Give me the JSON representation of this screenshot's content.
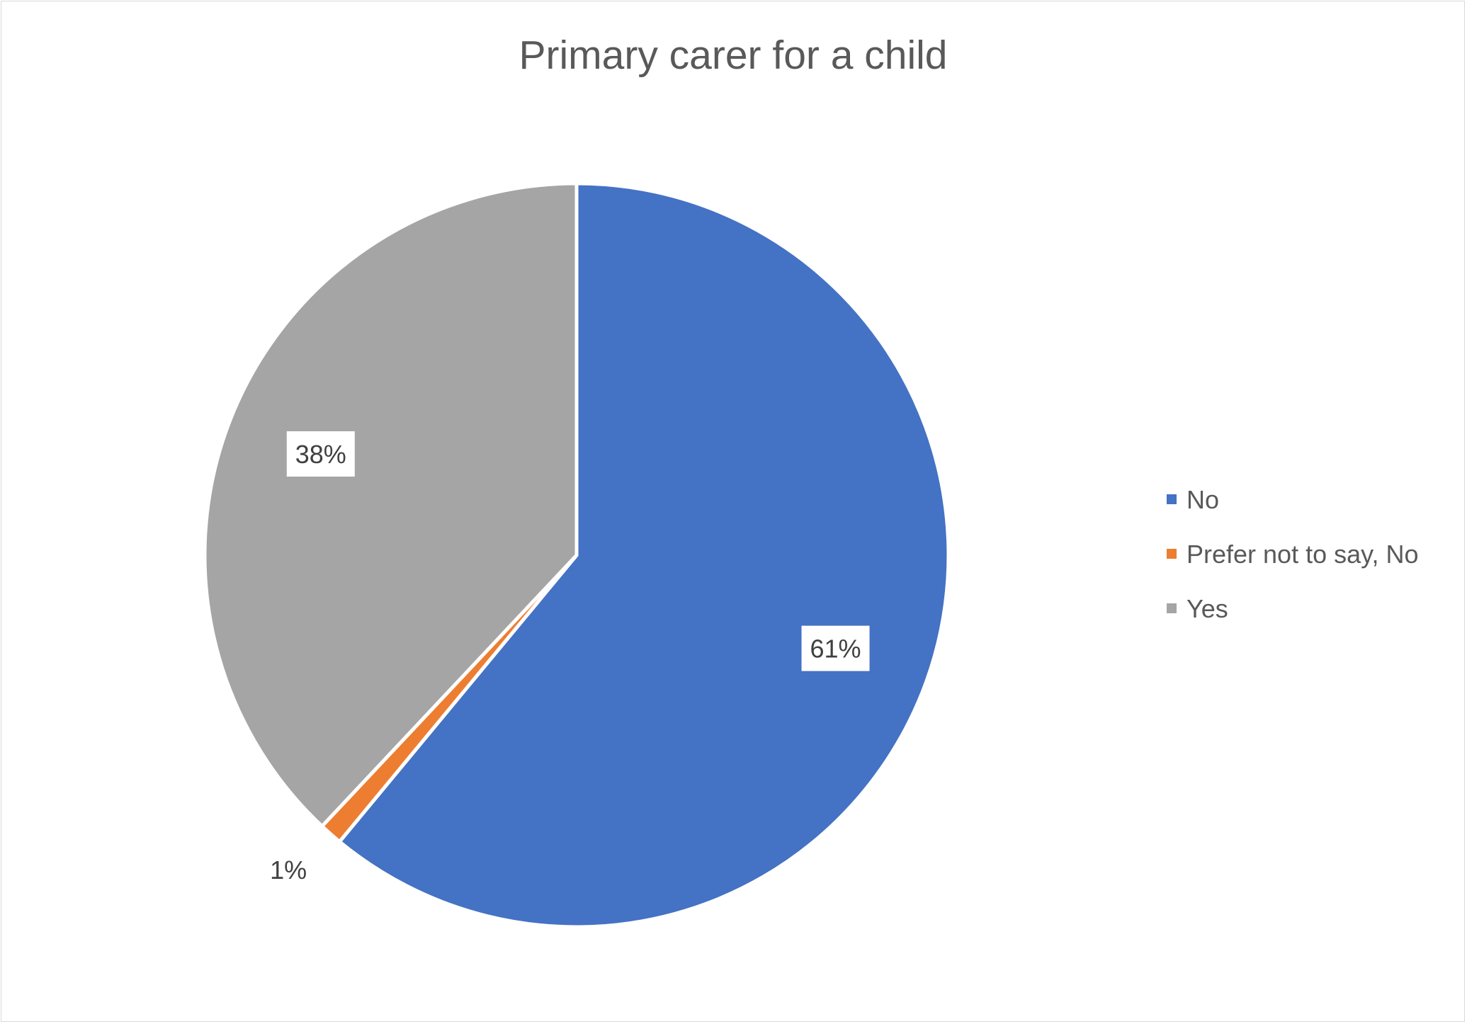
{
  "chart_data": {
    "type": "pie",
    "title": "Primary carer for a child",
    "categories": [
      "No",
      "Prefer not to say, No",
      "Yes"
    ],
    "values": [
      61,
      1,
      38
    ],
    "value_unit": "%",
    "data_labels": [
      "61%",
      "1%",
      "38%"
    ],
    "colors": [
      "#4472c4",
      "#ed7d31",
      "#a5a5a5"
    ],
    "legend_position": "right",
    "start_angle_deg": 0,
    "direction": "clockwise"
  }
}
